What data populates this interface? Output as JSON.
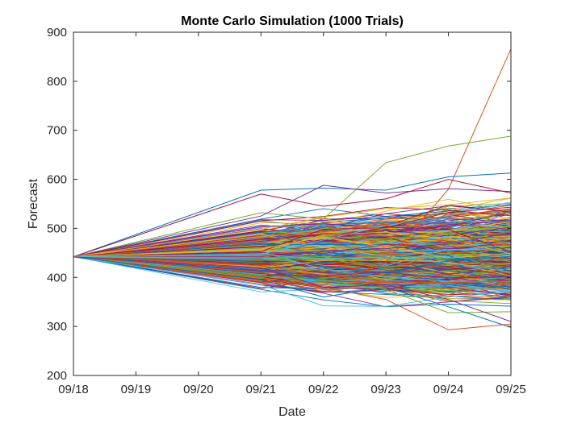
{
  "chart_data": {
    "type": "line",
    "title": "Monte Carlo Simulation (1000 Trials)",
    "xlabel": "Date",
    "ylabel": "Forecast",
    "x": [
      "09/18",
      "09/19",
      "09/20",
      "09/21",
      "09/22",
      "09/23",
      "09/24",
      "09/25"
    ],
    "x_ticks": [
      "09/18",
      "09/19",
      "09/20",
      "09/21",
      "09/22",
      "09/23",
      "09/24",
      "09/25"
    ],
    "y_ticks": [
      200,
      300,
      400,
      500,
      600,
      700,
      800,
      900
    ],
    "ylim": [
      200,
      900
    ],
    "grid": false,
    "legend": "none",
    "trial_count": 1000,
    "start_value": 442,
    "colors": [
      "#0072BD",
      "#D95319",
      "#EDB120",
      "#7E2F8E",
      "#77AC30",
      "#4DBEEE",
      "#A2142F"
    ],
    "highlighted_series": [
      {
        "values": [
          442,
          null,
          null,
          410,
          384,
          430,
          580,
          866
        ]
      },
      {
        "values": [
          442,
          null,
          null,
          532,
          519,
          634,
          668,
          688
        ]
      },
      {
        "values": [
          442,
          null,
          null,
          578,
          582,
          578,
          605,
          613
        ]
      },
      {
        "values": [
          442,
          null,
          null,
          525,
          588,
          572,
          581,
          575
        ]
      },
      {
        "values": [
          442,
          null,
          null,
          570,
          545,
          560,
          600,
          572
        ]
      },
      {
        "values": [
          442,
          null,
          null,
          498,
          523,
          540,
          548,
          562
        ]
      },
      {
        "values": [
          442,
          null,
          null,
          385,
          342,
          341,
          360,
          370
        ]
      },
      {
        "values": [
          442,
          null,
          null,
          400,
          380,
          355,
          293,
          305
        ]
      },
      {
        "values": [
          442,
          null,
          null,
          402,
          395,
          375,
          328,
          330
        ]
      },
      {
        "values": [
          442,
          null,
          null,
          395,
          360,
          380,
          340,
          298
        ]
      },
      {
        "values": [
          442,
          null,
          null,
          420,
          380,
          385,
          355,
          310
        ]
      }
    ]
  }
}
